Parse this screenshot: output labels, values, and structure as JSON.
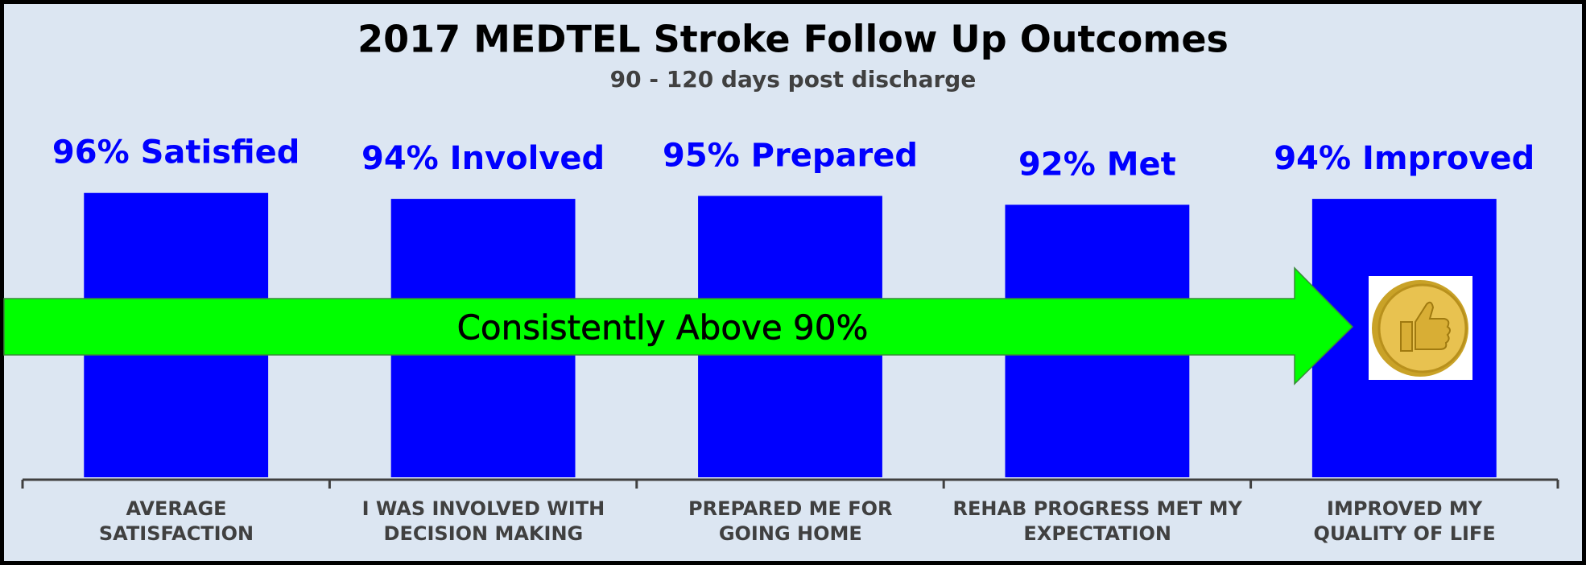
{
  "chart_data": {
    "type": "bar",
    "title": "2017 MEDTEL Stroke Follow Up Outcomes",
    "subtitle": "90 - 120 days post discharge",
    "categories": [
      "AVERAGE\nSATISFACTION",
      "I WAS INVOLVED WITH\nDECISION MAKING",
      "PREPARED ME FOR\nGOING HOME",
      "REHAB PROGRESS MET MY\nEXPECTATION",
      "IMPROVED MY\nQUALITY OF LIFE"
    ],
    "values": [
      96,
      94,
      95,
      92,
      94
    ],
    "value_labels": [
      "96% Satisfied",
      "94% Involved",
      "95% Prepared",
      "92% Met",
      "94% Improved"
    ],
    "color": "#0000ff",
    "ylim": [
      0,
      100
    ],
    "annotation": "Consistently Above 90%"
  }
}
